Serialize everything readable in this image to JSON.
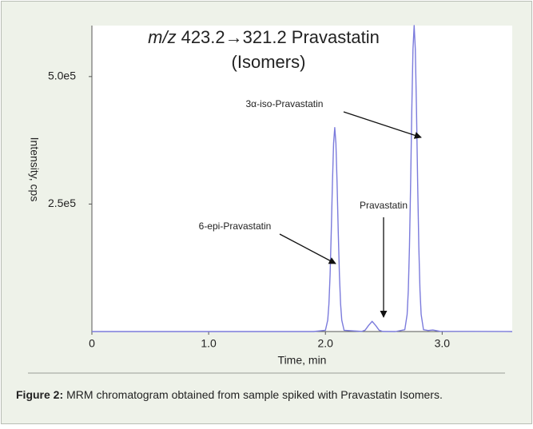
{
  "chart_data": {
    "type": "line",
    "title": [
      "m/z",
      "423.2→321.2 Pravastatin",
      "(Isomers)"
    ],
    "x_label": "Time, min",
    "y_label": "Intensity, cps",
    "annotations": [
      "3α-iso-Pravastatin",
      "Pravastatin",
      "6-epi-Pravastatin"
    ],
    "xlim": [
      0,
      3.6
    ],
    "ylim": [
      0,
      600000
    ],
    "xticks": [
      0,
      {
        "value": 1,
        "label": "1.0"
      },
      {
        "value": 2,
        "label": "2.0"
      },
      {
        "value": 3,
        "label": "3.0"
      }
    ],
    "yticks": [
      {
        "value": 250000,
        "label": "2.5e5"
      },
      {
        "value": 500000,
        "label": "5.0e5"
      }
    ],
    "x": [
      0,
      1.9,
      2.0,
      2.02,
      2.03,
      2.04,
      2.05,
      2.06,
      2.07,
      2.08,
      2.09,
      2.1,
      2.11,
      2.12,
      2.13,
      2.14,
      2.16,
      2.31,
      2.34,
      2.37,
      2.4,
      2.43,
      2.46,
      2.49,
      2.6,
      2.68,
      2.7,
      2.71,
      2.72,
      2.73,
      2.74,
      2.75,
      2.76,
      2.77,
      2.78,
      2.79,
      2.8,
      2.81,
      2.82,
      2.84,
      2.88,
      2.92,
      2.98,
      3.6
    ],
    "series": [
      {
        "color": "#7b7bdc",
        "values": [
          0,
          0,
          2400,
          22400,
          54000,
          111000,
          195000,
          290000,
          369000,
          400000,
          369000,
          290000,
          195000,
          111000,
          54000,
          22400,
          2400,
          200,
          2700,
          12100,
          20000,
          12100,
          2700,
          200,
          0,
          3600,
          33600,
          81000,
          167000,
          292000,
          436000,
          554000,
          600000,
          554000,
          436000,
          292000,
          167000,
          81000,
          33600,
          3600,
          2000,
          3000,
          500,
          0
        ]
      }
    ]
  },
  "caption": {
    "label": "Figure 2:",
    "text": "MRM chromatogram obtained from sample spiked with Pravastatin Isomers."
  }
}
